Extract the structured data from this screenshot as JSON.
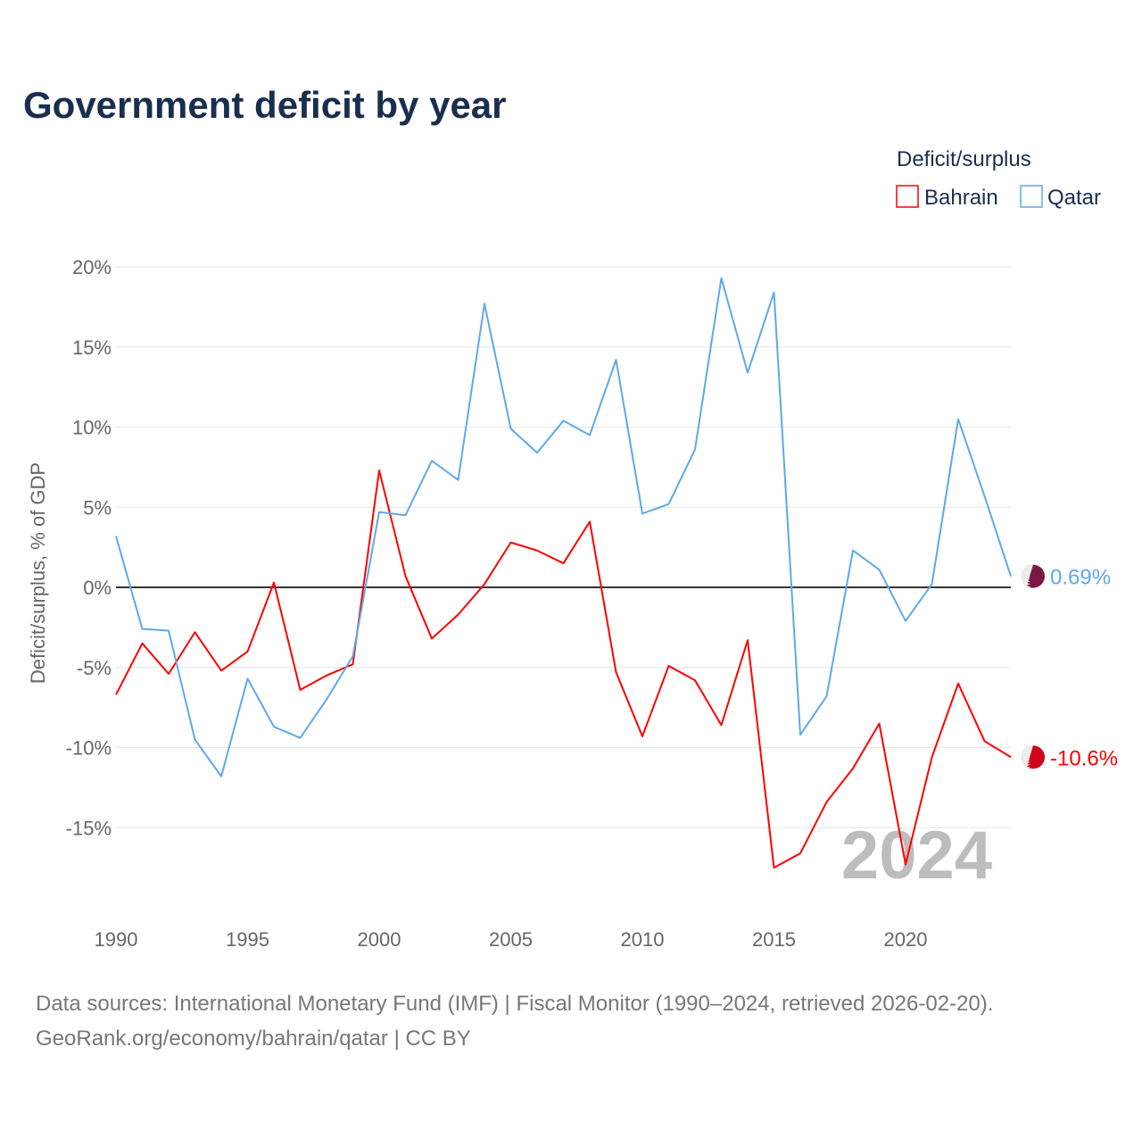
{
  "chart_data": {
    "type": "line",
    "title": "Government deficit by year",
    "ylabel": "Deficit/surplus, % of GDP",
    "xlabel": "",
    "ylim": [
      -19,
      20
    ],
    "xlim": [
      1990,
      2024
    ],
    "y_ticks": [
      20,
      15,
      10,
      5,
      0,
      -5,
      -10,
      -15
    ],
    "y_tick_labels": [
      "20%",
      "15%",
      "10%",
      "5%",
      "0%",
      "-5%",
      "-10%",
      "-15%"
    ],
    "x_ticks": [
      1990,
      1995,
      2000,
      2005,
      2010,
      2015,
      2020
    ],
    "x_tick_labels": [
      "1990",
      "1995",
      "2000",
      "2005",
      "2010",
      "2015",
      "2020"
    ],
    "grid": true,
    "legend": {
      "title": "Deficit/surplus",
      "position": "top-right"
    },
    "year_watermark": "2024",
    "x": [
      1990,
      1991,
      1992,
      1993,
      1994,
      1995,
      1996,
      1997,
      1998,
      1999,
      2000,
      2001,
      2002,
      2003,
      2004,
      2005,
      2006,
      2007,
      2008,
      2009,
      2010,
      2011,
      2012,
      2013,
      2014,
      2015,
      2016,
      2017,
      2018,
      2019,
      2020,
      2021,
      2022,
      2023,
      2024
    ],
    "series": [
      {
        "name": "Bahrain",
        "color": "#ff0000",
        "end_label": "-10.6%",
        "flag_color": "#d0021b",
        "values": [
          -6.7,
          -3.5,
          -5.4,
          -2.8,
          -5.2,
          -4.0,
          0.3,
          -6.4,
          -5.5,
          -4.8,
          7.3,
          0.7,
          -3.2,
          -1.7,
          0.2,
          2.8,
          2.3,
          1.5,
          4.1,
          -5.3,
          -9.3,
          -4.9,
          -5.8,
          -8.6,
          -3.3,
          -17.5,
          -16.6,
          -13.4,
          -11.3,
          -8.5,
          -17.3,
          -10.6,
          -6.0,
          -9.6,
          -10.6
        ]
      },
      {
        "name": "Qatar",
        "color": "#5ea8ec",
        "end_label": "0.69%",
        "flag_color": "#7a1a44",
        "values": [
          3.2,
          -2.6,
          -2.7,
          -9.5,
          -11.8,
          -5.7,
          -8.7,
          -9.4,
          -7.0,
          -4.3,
          4.7,
          4.5,
          7.9,
          6.7,
          17.7,
          9.9,
          8.4,
          10.4,
          9.5,
          14.2,
          4.6,
          5.2,
          8.6,
          19.3,
          13.4,
          18.4,
          -9.2,
          -6.8,
          2.3,
          1.1,
          -2.1,
          0.2,
          10.5,
          5.7,
          0.69
        ]
      }
    ]
  },
  "footer": {
    "line1": "Data sources: International Monetary Fund (IMF) | Fiscal Monitor (1990–2024, retrieved 2026-02-20).",
    "line2": "GeoRank.org/economy/bahrain/qatar | CC BY"
  },
  "colors": {
    "title": "#1a2e4f",
    "axis_text": "#666666",
    "grid": "#e6e6e6",
    "zero": "#333333",
    "watermark": "#bdbdbd"
  }
}
